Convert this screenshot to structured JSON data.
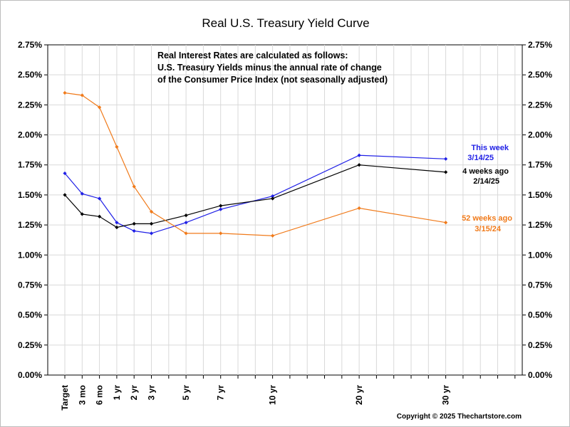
{
  "chart_data": {
    "type": "line",
    "title": "Real U.S. Treasury Yield Curve",
    "categories": [
      "Target",
      "3 mo",
      "6 mo",
      "1 yr",
      "2 yr",
      "3 yr",
      "5 yr",
      "7 yr",
      "10 yr",
      "20 yr",
      "30 yr"
    ],
    "x_maturity_years": [
      0,
      0.25,
      0.5,
      1,
      2,
      3,
      5,
      7,
      10,
      20,
      30
    ],
    "ylim": [
      0,
      2.75
    ],
    "y_ticks": [
      "0.00%",
      "0.25%",
      "0.50%",
      "0.75%",
      "1.00%",
      "1.25%",
      "1.50%",
      "1.75%",
      "2.00%",
      "2.25%",
      "2.50%",
      "2.75%"
    ],
    "grid": true,
    "note": [
      "Real Interest Rates are calculated as follows:",
      "U.S. Treasury Yields minus the annual rate of change",
      "of the Consumer Price Index (not seasonally adjusted)"
    ],
    "series": [
      {
        "name": "This week",
        "date": "3/14/25",
        "color": "#1f1fe6",
        "values": [
          1.68,
          1.51,
          1.47,
          1.27,
          1.2,
          1.18,
          1.27,
          1.38,
          1.49,
          1.83,
          1.8
        ]
      },
      {
        "name": "4 weeks ago",
        "date": "2/14/25",
        "color": "#000000",
        "values": [
          1.5,
          1.34,
          1.32,
          1.23,
          1.26,
          1.26,
          1.33,
          1.41,
          1.47,
          1.75,
          1.69
        ]
      },
      {
        "name": "52 weeks ago",
        "date": "3/15/24",
        "color": "#f07a1a",
        "values": [
          2.35,
          2.33,
          2.23,
          1.9,
          1.57,
          1.36,
          1.18,
          1.18,
          1.16,
          1.39,
          1.27
        ]
      }
    ],
    "copyright": "Copyright © 2025 Thechartstore.com"
  }
}
